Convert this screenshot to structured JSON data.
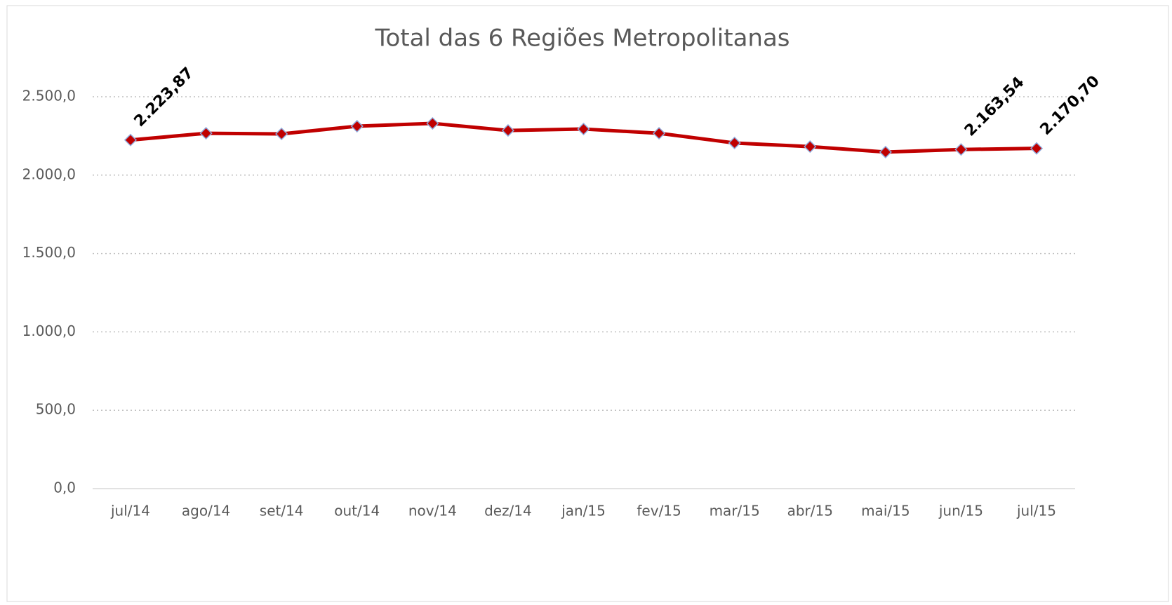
{
  "chart_data": {
    "type": "line",
    "title": "Total das 6 Regiões Metropolitanas",
    "categories": [
      "jul/14",
      "ago/14",
      "set/14",
      "out/14",
      "nov/14",
      "dez/14",
      "jan/15",
      "fev/15",
      "mar/15",
      "abr/15",
      "mai/15",
      "jun/15",
      "jul/15"
    ],
    "series": [
      {
        "color": "#c00000",
        "values": [
          2223.87,
          2267,
          2263,
          2312,
          2330,
          2285,
          2294,
          2267,
          2205,
          2182,
          2147,
          2163.54,
          2170.7
        ],
        "value_labels": [
          "2.223,87",
          null,
          null,
          null,
          null,
          null,
          null,
          null,
          null,
          null,
          null,
          "2.163,54",
          "2.170,70"
        ]
      }
    ],
    "ylim": [
      0,
      2500
    ],
    "yticks": [
      {
        "value": 0,
        "label": "0,0"
      },
      {
        "value": 500,
        "label": "500,0"
      },
      {
        "value": 1000,
        "label": "1.000,0"
      },
      {
        "value": 1500,
        "label": "1.500,0"
      },
      {
        "value": 2000,
        "label": "2.000,0"
      },
      {
        "value": 2500,
        "label": "2.500,0"
      }
    ],
    "grid": true
  }
}
